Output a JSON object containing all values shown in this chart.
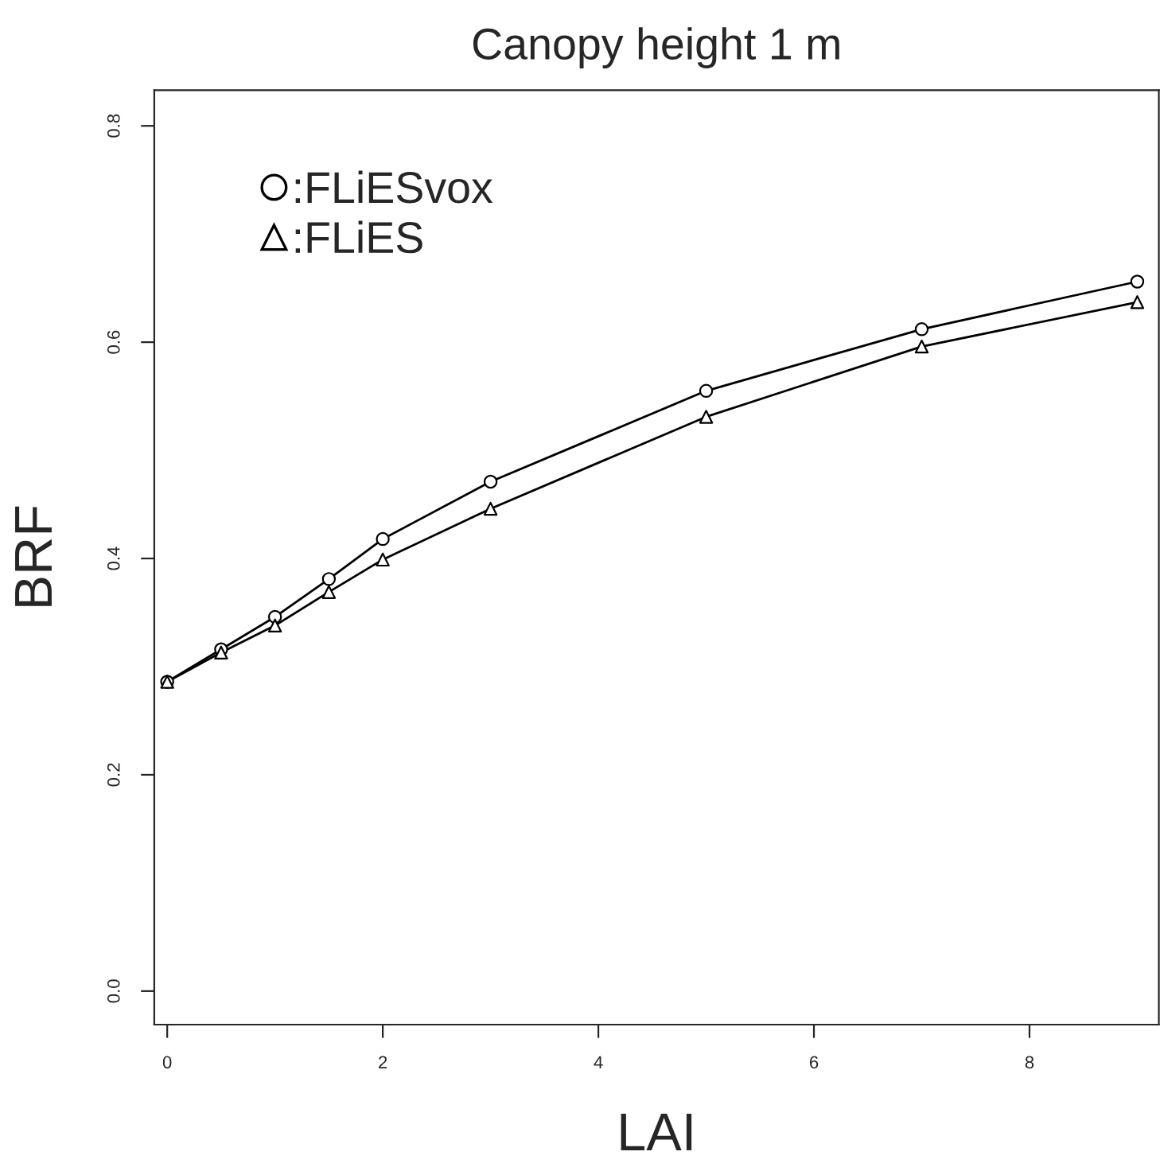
{
  "chart_data": {
    "type": "line",
    "title": "Canopy height 1 m",
    "xlabel": "LAI",
    "ylabel": "BRF",
    "x": [
      0,
      0.5,
      1,
      1.5,
      2,
      3,
      5,
      7,
      9
    ],
    "series": [
      {
        "name": ":FLiESvox",
        "color": "#000000",
        "marker": "circle",
        "values": [
          0.286,
          0.316,
          0.346,
          0.381,
          0.418,
          0.471,
          0.555,
          0.612,
          0.656
        ]
      },
      {
        "name": ":FLiES",
        "color": "#000000",
        "marker": "triangle",
        "values": [
          0.286,
          0.313,
          0.338,
          0.369,
          0.399,
          0.446,
          0.531,
          0.596,
          0.637
        ]
      }
    ],
    "xlim": [
      -0.12,
      9.2
    ],
    "xticks": [
      0,
      2,
      4,
      6,
      8
    ],
    "ylim": [
      -0.031,
      0.833
    ],
    "yticks": [
      {
        "value": 0,
        "label": "0.0"
      },
      0.2,
      0.4,
      0.6,
      0.8
    ],
    "grid": false,
    "legend": "top left",
    "line_style": "solid"
  }
}
